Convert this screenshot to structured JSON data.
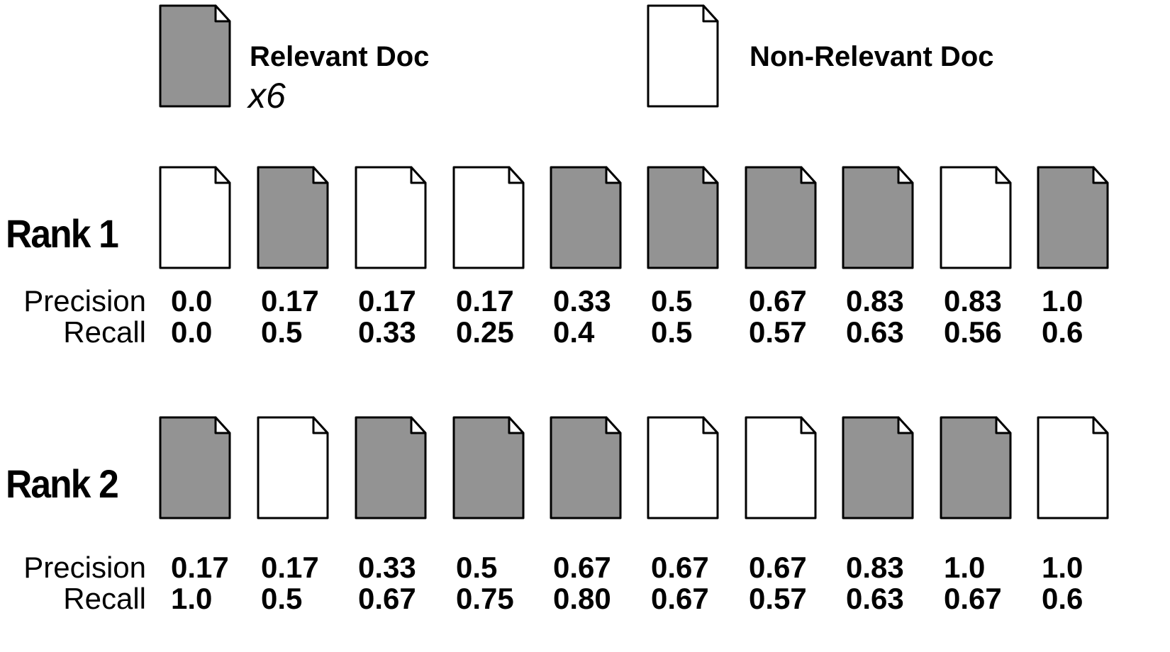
{
  "colors": {
    "relevant_fill": "#939393",
    "non_relevant_fill": "#ffffff",
    "stroke": "#000000"
  },
  "legend": {
    "relevant": {
      "icon": "relevant-doc-icon",
      "label": "Relevant Doc",
      "count": "x6"
    },
    "non_relevant": {
      "icon": "non-relevant-doc-icon",
      "label": "Non-Relevant Doc"
    }
  },
  "row_labels": {
    "precision": "Precision",
    "recall": "Recall"
  },
  "rankings": [
    {
      "label": "Rank 1",
      "relevance": [
        false,
        true,
        false,
        false,
        true,
        true,
        true,
        true,
        false,
        true
      ],
      "precision": [
        "0.0",
        "0.17",
        "0.17",
        "0.17",
        "0.33",
        "0.5",
        "0.67",
        "0.83",
        "0.83",
        "1.0"
      ],
      "recall": [
        "0.0",
        "0.5",
        "0.33",
        "0.25",
        "0.4",
        "0.5",
        "0.57",
        "0.63",
        "0.56",
        "0.6"
      ]
    },
    {
      "label": "Rank 2",
      "relevance": [
        true,
        false,
        true,
        true,
        true,
        false,
        false,
        true,
        true,
        false
      ],
      "precision": [
        "0.17",
        "0.17",
        "0.33",
        "0.5",
        "0.67",
        "0.67",
        "0.67",
        "0.83",
        "1.0",
        "1.0"
      ],
      "recall": [
        "1.0",
        "0.5",
        "0.67",
        "0.75",
        "0.80",
        "0.67",
        "0.57",
        "0.63",
        "0.67",
        "0.6"
      ]
    }
  ]
}
